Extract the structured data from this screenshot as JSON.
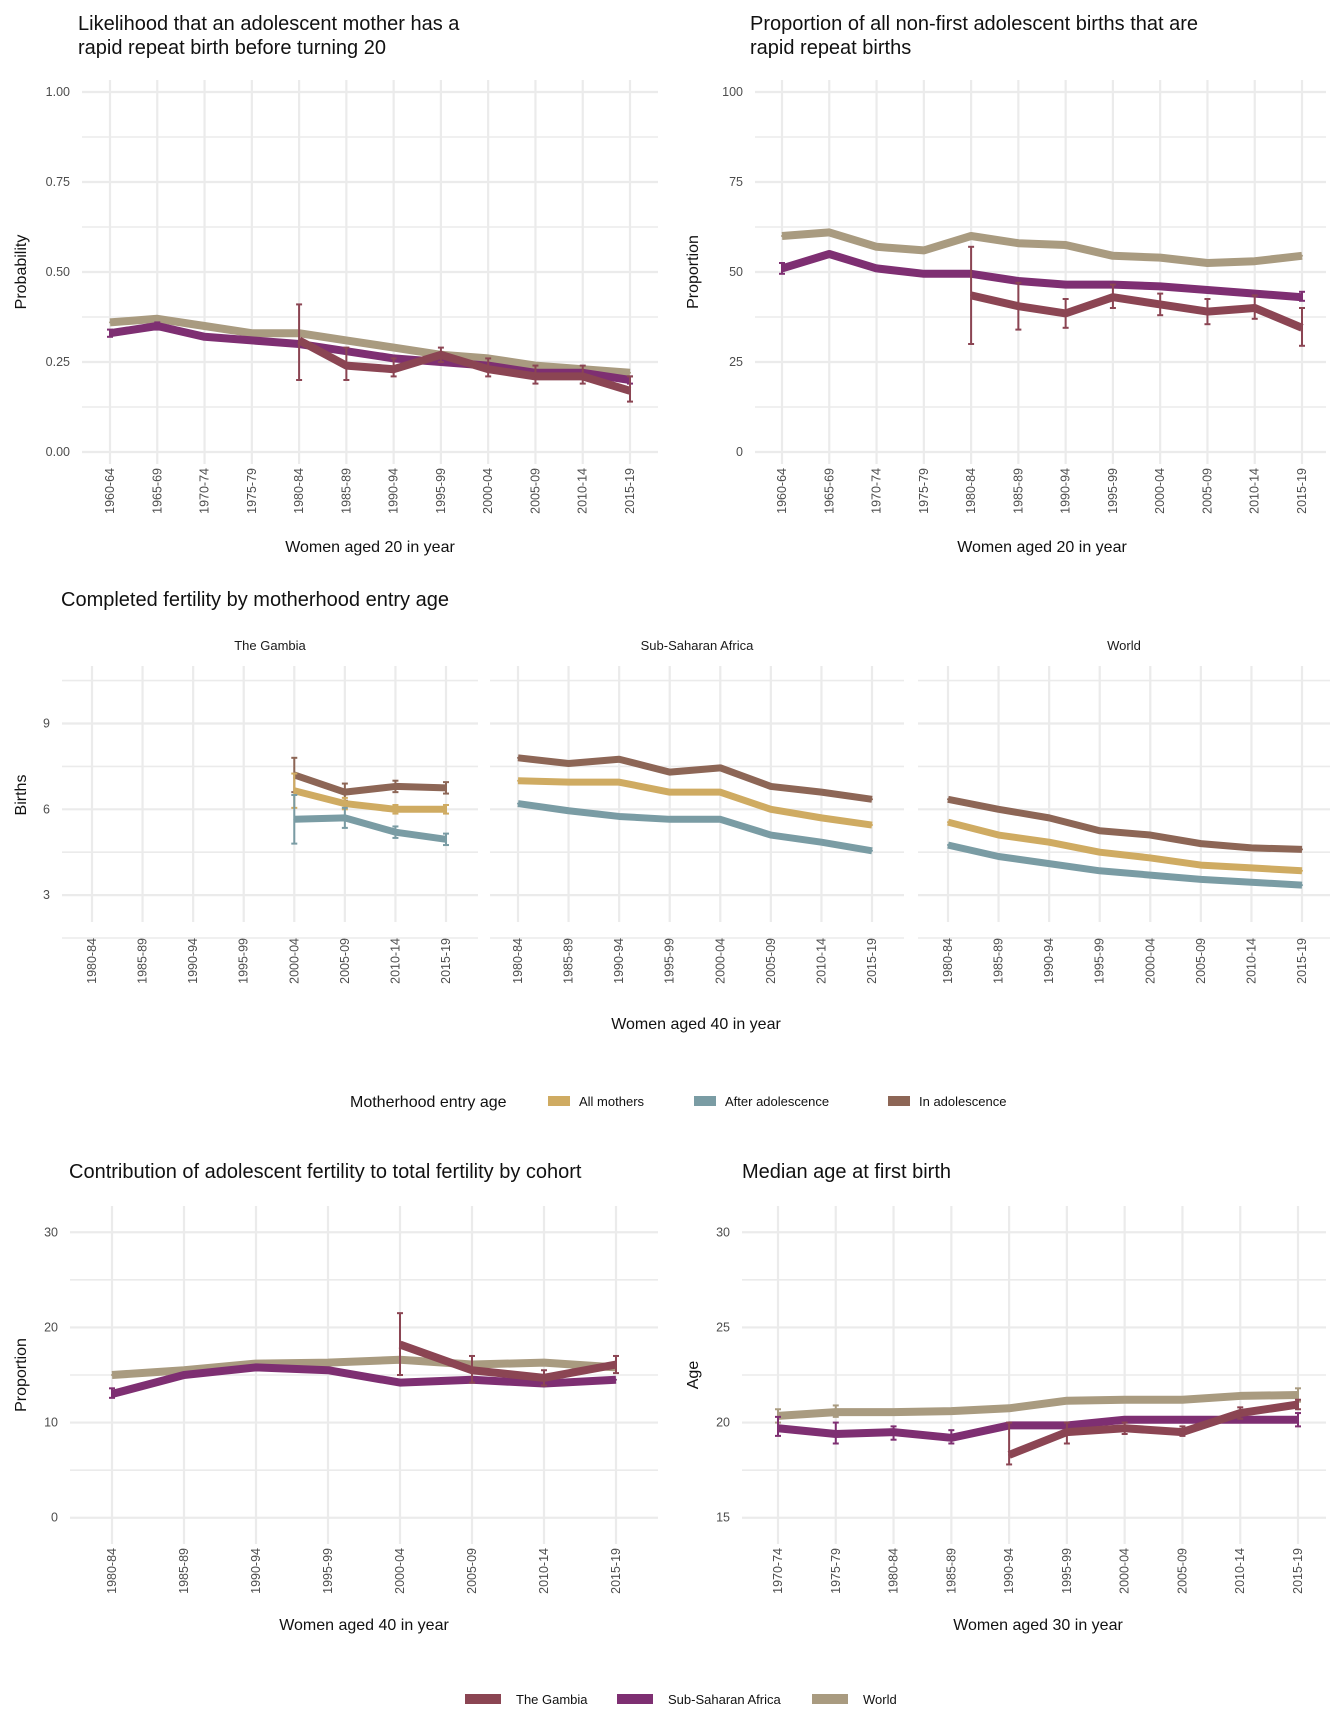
{
  "colors": {
    "The Gambia": "#8b4553",
    "Sub-Saharan Africa": "#7e2f72",
    "World": "#a99b80",
    "All mothers": "#cfab62",
    "After adolescence": "#7a9ca4",
    "In adolescence": "#8d6656"
  },
  "legend_country": {
    "items": [
      "The Gambia",
      "Sub-Saharan Africa",
      "World"
    ]
  },
  "legend_entry": {
    "title": "Motherhood entry age",
    "items": [
      "All mothers",
      "After adolescence",
      "In adolescence"
    ]
  },
  "chart_data": [
    {
      "id": "rapid-repeat-likelihood",
      "type": "line",
      "title": "Likelihood that an adolescent mother has a rapid repeat birth before turning 20",
      "title_lines": [
        "Likelihood that an adolescent mother has a",
        "rapid repeat birth before turning 20"
      ],
      "xlabel": "Women aged 20 in year",
      "ylabel": "Probability",
      "ylim": [
        0,
        1
      ],
      "yticks": [
        0,
        0.25,
        0.5,
        0.75,
        1.0
      ],
      "ytick_labels": [
        "0.00",
        "0.25",
        "0.50",
        "0.75",
        "1.00"
      ],
      "categories": [
        "1960-64",
        "1965-69",
        "1970-74",
        "1975-79",
        "1980-84",
        "1985-89",
        "1990-94",
        "1995-99",
        "2000-04",
        "2005-09",
        "2010-14",
        "2015-19"
      ],
      "grid": true,
      "series": [
        {
          "name": "World",
          "values": [
            0.36,
            0.37,
            0.35,
            0.33,
            0.33,
            0.31,
            0.29,
            0.27,
            0.26,
            0.24,
            0.23,
            0.22
          ],
          "error": null
        },
        {
          "name": "Sub-Saharan Africa",
          "values": [
            0.33,
            0.35,
            0.32,
            0.31,
            0.3,
            0.28,
            0.26,
            0.25,
            0.24,
            0.22,
            0.22,
            0.2
          ],
          "error": [
            [
              0.32,
              0.34
            ],
            [
              0.34,
              0.36
            ],
            null,
            null,
            null,
            null,
            null,
            null,
            null,
            null,
            null,
            [
              0.19,
              0.21
            ]
          ]
        },
        {
          "name": "The Gambia",
          "values": [
            null,
            null,
            null,
            null,
            0.31,
            0.24,
            0.23,
            0.27,
            0.23,
            0.21,
            0.21,
            0.17
          ],
          "error": [
            null,
            null,
            null,
            null,
            [
              0.2,
              0.41
            ],
            [
              0.2,
              0.29
            ],
            [
              0.21,
              0.26
            ],
            [
              0.25,
              0.29
            ],
            [
              0.21,
              0.26
            ],
            [
              0.19,
              0.24
            ],
            [
              0.19,
              0.24
            ],
            [
              0.14,
              0.21
            ]
          ]
        }
      ]
    },
    {
      "id": "rapid-repeat-proportion",
      "type": "line",
      "title": "Proportion of all non-first adolescent births that are rapid repeat births",
      "title_lines": [
        "Proportion of all non-first adolescent births that are",
        "rapid repeat births"
      ],
      "xlabel": "Women aged 20 in year",
      "ylabel": "Proportion",
      "ylim": [
        0,
        100
      ],
      "yticks": [
        0,
        25,
        50,
        75,
        100
      ],
      "ytick_labels": [
        "0",
        "25",
        "50",
        "75",
        "100"
      ],
      "categories": [
        "1960-64",
        "1965-69",
        "1970-74",
        "1975-79",
        "1980-84",
        "1985-89",
        "1990-94",
        "1995-99",
        "2000-04",
        "2005-09",
        "2010-14",
        "2015-19"
      ],
      "grid": true,
      "series": [
        {
          "name": "World",
          "values": [
            60,
            61,
            57,
            56,
            60,
            58,
            57.5,
            54.5,
            54,
            52.5,
            53,
            54.5
          ],
          "error": null
        },
        {
          "name": "Sub-Saharan Africa",
          "values": [
            51,
            55,
            51,
            49.5,
            49.5,
            47.5,
            46.5,
            46.5,
            46,
            45,
            44,
            43
          ],
          "error": [
            [
              49.5,
              52.5
            ],
            null,
            null,
            null,
            null,
            null,
            null,
            null,
            null,
            null,
            null,
            [
              42,
              44.5
            ]
          ]
        },
        {
          "name": "The Gambia",
          "values": [
            null,
            null,
            null,
            null,
            43.5,
            40.5,
            38.5,
            43,
            41,
            39,
            40,
            34.5
          ],
          "error": [
            null,
            null,
            null,
            null,
            [
              30,
              57
            ],
            [
              34,
              47
            ],
            [
              34.5,
              42.5
            ],
            [
              40,
              46.5
            ],
            [
              38,
              44
            ],
            [
              35.5,
              42.5
            ],
            [
              37,
              43.5
            ],
            [
              29.5,
              40
            ]
          ]
        }
      ]
    },
    {
      "id": "completed-fertility",
      "type": "line",
      "title": "Completed fertility by motherhood entry age",
      "xlabel": "Women aged 40 in year",
      "ylabel": "Births",
      "ylim": [
        1.5,
        11.5
      ],
      "yticks": [
        3,
        6,
        9
      ],
      "ytick_labels": [
        "3",
        "6",
        "9"
      ],
      "categories": [
        "1980-84",
        "1985-89",
        "1990-94",
        "1995-99",
        "2000-04",
        "2005-09",
        "2010-14",
        "2015-19"
      ],
      "grid": true,
      "legend": "bottom",
      "facets": [
        {
          "name": "The Gambia",
          "series": [
            {
              "name": "In adolescence",
              "values": [
                null,
                null,
                null,
                null,
                7.2,
                6.6,
                6.8,
                6.75
              ],
              "error": [
                null,
                null,
                null,
                null,
                [
                  6.6,
                  7.8
                ],
                [
                  6.3,
                  6.9
                ],
                [
                  6.6,
                  7.0
                ],
                [
                  6.55,
                  6.95
                ]
              ]
            },
            {
              "name": "All mothers",
              "values": [
                null,
                null,
                null,
                null,
                6.65,
                6.2,
                6.0,
                6.0
              ],
              "error": [
                null,
                null,
                null,
                null,
                [
                  6.05,
                  7.25
                ],
                [
                  6.0,
                  6.4
                ],
                [
                  5.85,
                  6.15
                ],
                [
                  5.85,
                  6.15
                ]
              ]
            },
            {
              "name": "After adolescence",
              "values": [
                null,
                null,
                null,
                null,
                5.65,
                5.7,
                5.2,
                4.95
              ],
              "error": [
                null,
                null,
                null,
                null,
                [
                  4.8,
                  6.5
                ],
                [
                  5.35,
                  6.05
                ],
                [
                  5.0,
                  5.4
                ],
                [
                  4.75,
                  5.15
                ]
              ]
            }
          ]
        },
        {
          "name": "Sub-Saharan Africa",
          "series": [
            {
              "name": "In adolescence",
              "values": [
                7.8,
                7.6,
                7.75,
                7.3,
                7.45,
                6.8,
                6.6,
                6.35
              ],
              "error": null
            },
            {
              "name": "All mothers",
              "values": [
                7.0,
                6.95,
                6.95,
                6.6,
                6.6,
                6.0,
                5.7,
                5.45
              ],
              "error": null
            },
            {
              "name": "After adolescence",
              "values": [
                6.2,
                5.95,
                5.75,
                5.65,
                5.65,
                5.1,
                4.85,
                4.55
              ],
              "error": null
            }
          ]
        },
        {
          "name": "World",
          "series": [
            {
              "name": "In adolescence",
              "values": [
                6.35,
                6.0,
                5.7,
                5.25,
                5.1,
                4.8,
                4.65,
                4.6
              ],
              "error": null
            },
            {
              "name": "All mothers",
              "values": [
                5.55,
                5.1,
                4.85,
                4.5,
                4.3,
                4.05,
                3.95,
                3.85
              ],
              "error": null
            },
            {
              "name": "After adolescence",
              "values": [
                4.75,
                4.35,
                4.1,
                3.85,
                3.7,
                3.55,
                3.45,
                3.35
              ],
              "error": null
            }
          ]
        }
      ]
    },
    {
      "id": "adolescent-contribution",
      "type": "line",
      "title": "Contribution of adolescent fertility to total fertility by cohort",
      "xlabel": "Women aged 40 in year",
      "ylabel": "Proportion",
      "ylim": [
        -1.5,
        31.5
      ],
      "yticks": [
        0,
        10,
        20,
        30
      ],
      "ytick_labels": [
        "0",
        "10",
        "20",
        "30"
      ],
      "categories": [
        "1980-84",
        "1985-89",
        "1990-94",
        "1995-99",
        "2000-04",
        "2005-09",
        "2010-14",
        "2015-19"
      ],
      "grid": true,
      "series": [
        {
          "name": "World",
          "values": [
            15.0,
            15.5,
            16.2,
            16.3,
            16.6,
            16.1,
            16.3,
            15.8
          ],
          "error": null
        },
        {
          "name": "Sub-Saharan Africa",
          "values": [
            13.0,
            15.0,
            15.8,
            15.5,
            14.2,
            14.5,
            14.1,
            14.5
          ],
          "error": [
            [
              12.6,
              13.6
            ],
            null,
            null,
            null,
            null,
            null,
            null,
            null
          ]
        },
        {
          "name": "The Gambia",
          "values": [
            null,
            null,
            null,
            null,
            18.2,
            15.5,
            14.7,
            16.1
          ],
          "error": [
            null,
            null,
            null,
            null,
            [
              15.0,
              21.5
            ],
            [
              14.2,
              17.0
            ],
            [
              13.9,
              15.5
            ],
            [
              15.2,
              17.0
            ]
          ]
        }
      ]
    },
    {
      "id": "median-age-first-birth",
      "type": "line",
      "title": "Median age at first birth",
      "xlabel": "Women aged 30 in year",
      "ylabel": "Age",
      "ylim": [
        14.25,
        30.75
      ],
      "yticks": [
        15,
        20,
        25,
        30
      ],
      "ytick_labels": [
        "15",
        "20",
        "25",
        "30"
      ],
      "categories": [
        "1970-74",
        "1975-79",
        "1980-84",
        "1985-89",
        "1990-94",
        "1995-99",
        "2000-04",
        "2005-09",
        "2010-14",
        "2015-19"
      ],
      "grid": true,
      "series": [
        {
          "name": "World",
          "values": [
            20.35,
            20.55,
            20.55,
            20.6,
            20.75,
            21.15,
            21.2,
            21.2,
            21.4,
            21.45
          ],
          "error": [
            [
              20.0,
              20.7
            ],
            [
              20.3,
              20.9
            ],
            null,
            null,
            null,
            null,
            null,
            null,
            null,
            [
              21.1,
              21.8
            ]
          ]
        },
        {
          "name": "Sub-Saharan Africa",
          "values": [
            19.7,
            19.4,
            19.5,
            19.2,
            19.85,
            19.85,
            20.15,
            20.15,
            20.15,
            20.15
          ],
          "error": [
            [
              19.3,
              20.3
            ],
            [
              18.9,
              20.0
            ],
            [
              19.1,
              19.8
            ],
            [
              18.9,
              19.6
            ],
            null,
            null,
            null,
            null,
            null,
            [
              19.8,
              20.5
            ]
          ]
        },
        {
          "name": "The Gambia",
          "values": [
            null,
            null,
            null,
            null,
            18.3,
            19.5,
            19.7,
            19.5,
            20.5,
            20.95
          ],
          "error": [
            null,
            null,
            null,
            null,
            [
              17.8,
              20.0
            ],
            [
              18.9,
              20.0
            ],
            [
              19.4,
              20.0
            ],
            [
              19.3,
              19.8
            ],
            [
              20.2,
              20.8
            ],
            [
              20.7,
              21.2
            ]
          ]
        }
      ]
    }
  ]
}
